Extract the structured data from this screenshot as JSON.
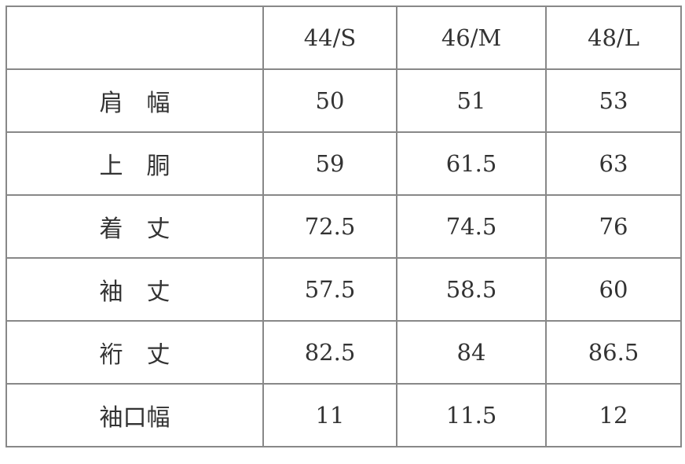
{
  "header": [
    "",
    "44/S",
    "46/M",
    "48/L"
  ],
  "rows": [
    {
      "label": "肩　幅",
      "values": [
        "50",
        "51",
        "53"
      ]
    },
    {
      "label": "上　胴",
      "values": [
        "59",
        "61.5",
        "63"
      ]
    },
    {
      "label": "着　丈",
      "values": [
        "72.5",
        "74.5",
        "76"
      ]
    },
    {
      "label": "袖　丈",
      "values": [
        "57.5",
        "58.5",
        "60"
      ]
    },
    {
      "label": "裄　丈",
      "values": [
        "82.5",
        "84",
        "86.5"
      ]
    },
    {
      "label": "袖口幅",
      "values": [
        "11",
        "11.5",
        "12"
      ]
    }
  ]
}
